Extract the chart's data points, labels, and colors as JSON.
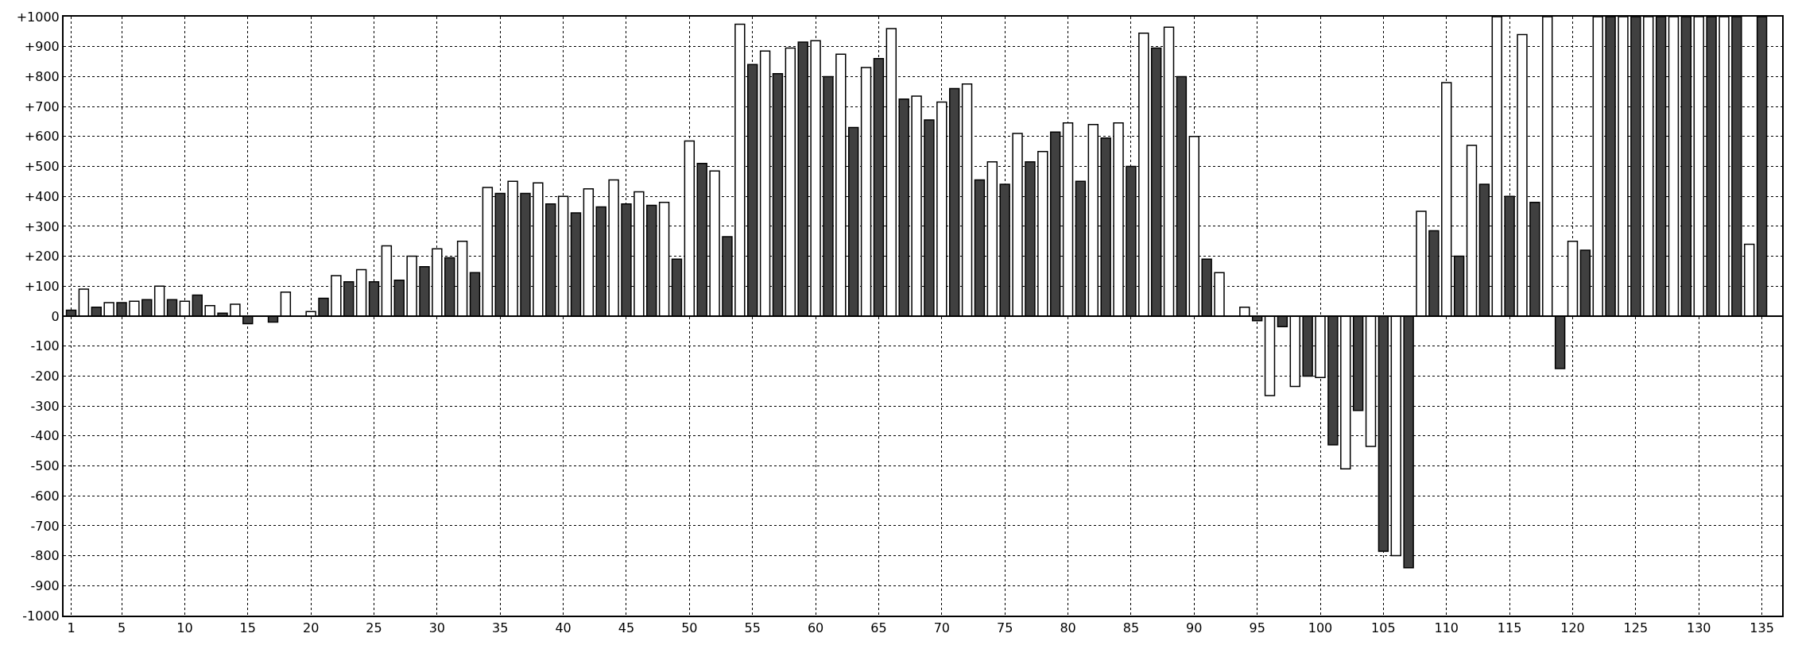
{
  "chart_data": {
    "type": "bar",
    "x": [
      1,
      2,
      3,
      4,
      5,
      6,
      7,
      8,
      9,
      10,
      11,
      12,
      13,
      14,
      15,
      16,
      17,
      18,
      19,
      20,
      21,
      22,
      23,
      24,
      25,
      26,
      27,
      28,
      29,
      30,
      31,
      32,
      33,
      34,
      35,
      36,
      37,
      38,
      39,
      40,
      41,
      42,
      43,
      44,
      45,
      46,
      47,
      48,
      49,
      50,
      51,
      52,
      53,
      54,
      55,
      56,
      57,
      58,
      59,
      60,
      61,
      62,
      63,
      64,
      65,
      66,
      67,
      68,
      69,
      70,
      71,
      72,
      73,
      74,
      75,
      76,
      77,
      78,
      79,
      80,
      81,
      82,
      83,
      84,
      85,
      86,
      87,
      88,
      89,
      90,
      91,
      92,
      93,
      94,
      95,
      96,
      97,
      98,
      99,
      100,
      101,
      102,
      103,
      104,
      105,
      106,
      107,
      108,
      109,
      110,
      111,
      112,
      113,
      114,
      115,
      116,
      117,
      118,
      119,
      120,
      121,
      122,
      123,
      124,
      125,
      126,
      127,
      128,
      129,
      130,
      131,
      132,
      133,
      134,
      135
    ],
    "values": [
      20,
      90,
      30,
      45,
      45,
      50,
      55,
      100,
      55,
      50,
      70,
      35,
      10,
      40,
      -25,
      null,
      -20,
      80,
      null,
      15,
      60,
      135,
      115,
      155,
      115,
      235,
      120,
      200,
      165,
      225,
      195,
      250,
      145,
      430,
      410,
      450,
      410,
      445,
      375,
      400,
      345,
      425,
      365,
      455,
      375,
      415,
      370,
      380,
      190,
      585,
      510,
      485,
      265,
      975,
      840,
      885,
      810,
      895,
      915,
      920,
      800,
      875,
      630,
      830,
      860,
      960,
      725,
      735,
      655,
      715,
      760,
      775,
      455,
      515,
      440,
      610,
      515,
      550,
      615,
      645,
      450,
      640,
      595,
      645,
      500,
      945,
      895,
      965,
      800,
      600,
      190,
      145,
      null,
      30,
      -15,
      -265,
      -35,
      -235,
      -200,
      -205,
      -430,
      -510,
      -315,
      -435,
      -785,
      -800,
      -840,
      350,
      285,
      780,
      200,
      570,
      440,
      1000,
      400,
      940,
      380,
      1000,
      -175,
      250,
      220,
      1000,
      1000,
      1000,
      1000,
      1000,
      1000,
      1000,
      1000,
      1000,
      1000,
      1000,
      1000,
      240,
      1000
    ],
    "colors": [
      "#404040",
      "#ffffff",
      "#404040",
      "#ffffff",
      "#404040",
      "#ffffff",
      "#404040",
      "#ffffff",
      "#404040",
      "#ffffff",
      "#404040",
      "#ffffff",
      "#404040",
      "#ffffff",
      "#404040",
      "#ffffff",
      "#404040",
      "#ffffff",
      "#404040",
      "#ffffff",
      "#404040",
      "#ffffff",
      "#404040",
      "#ffffff",
      "#404040",
      "#ffffff",
      "#404040",
      "#ffffff",
      "#404040",
      "#ffffff",
      "#404040",
      "#ffffff",
      "#404040",
      "#ffffff",
      "#404040",
      "#ffffff",
      "#404040",
      "#ffffff",
      "#404040",
      "#ffffff",
      "#404040",
      "#ffffff",
      "#404040",
      "#ffffff",
      "#404040",
      "#ffffff",
      "#404040",
      "#ffffff",
      "#404040",
      "#ffffff",
      "#404040",
      "#ffffff",
      "#404040",
      "#ffffff",
      "#404040",
      "#ffffff",
      "#404040",
      "#ffffff",
      "#404040",
      "#ffffff",
      "#404040",
      "#ffffff",
      "#404040",
      "#ffffff",
      "#404040",
      "#ffffff",
      "#404040",
      "#ffffff",
      "#404040",
      "#ffffff",
      "#404040",
      "#ffffff",
      "#404040",
      "#ffffff",
      "#404040",
      "#ffffff",
      "#404040",
      "#ffffff",
      "#404040",
      "#ffffff",
      "#404040",
      "#ffffff",
      "#404040",
      "#ffffff",
      "#404040",
      "#ffffff",
      "#404040",
      "#ffffff",
      "#404040",
      "#ffffff",
      "#404040",
      "#ffffff",
      "#404040",
      "#ffffff",
      "#404040",
      "#ffffff",
      "#404040",
      "#ffffff",
      "#404040",
      "#ffffff",
      "#404040",
      "#ffffff",
      "#404040",
      "#ffffff",
      "#404040",
      "#ffffff",
      "#404040",
      "#ffffff",
      "#404040",
      "#ffffff",
      "#404040",
      "#ffffff",
      "#404040",
      "#ffffff",
      "#404040",
      "#ffffff",
      "#404040",
      "#ffffff",
      "#404040",
      "#ffffff",
      "#404040",
      "#ffffff",
      "#404040",
      "#ffffff",
      "#404040",
      "#ffffff",
      "#404040",
      "#ffffff",
      "#404040",
      "#ffffff",
      "#404040",
      "#ffffff",
      "#404040",
      "#ffffff",
      "#404040"
    ],
    "xlim": [
      0.4,
      136.6
    ],
    "xticks": [
      1,
      5,
      10,
      15,
      20,
      25,
      30,
      35,
      40,
      45,
      50,
      55,
      60,
      65,
      70,
      75,
      80,
      85,
      90,
      95,
      100,
      105,
      110,
      115,
      120,
      125,
      130,
      135
    ],
    "ylim": [
      -1000,
      1000
    ],
    "yticks": [
      {
        "value": -1000,
        "label": "-1000"
      },
      {
        "value": -900,
        "label": "-900"
      },
      {
        "value": -800,
        "label": "-800"
      },
      {
        "value": -700,
        "label": "-700"
      },
      {
        "value": -600,
        "label": "-600"
      },
      {
        "value": -500,
        "label": "-500"
      },
      {
        "value": -400,
        "label": "-400"
      },
      {
        "value": -300,
        "label": "-300"
      },
      {
        "value": -200,
        "label": "-200"
      },
      {
        "value": -100,
        "label": "-100"
      },
      0,
      {
        "value": 100,
        "label": "+100"
      },
      {
        "value": 200,
        "label": "+200"
      },
      {
        "value": 300,
        "label": "+300"
      },
      {
        "value": 400,
        "label": "+400"
      },
      {
        "value": 500,
        "label": "+500"
      },
      {
        "value": 600,
        "label": "+600"
      },
      {
        "value": 700,
        "label": "+700"
      },
      {
        "value": 800,
        "label": "+800"
      },
      {
        "value": 900,
        "label": "+900"
      },
      {
        "value": 1000,
        "label": "+1000"
      }
    ],
    "grid": true,
    "legend": false
  }
}
